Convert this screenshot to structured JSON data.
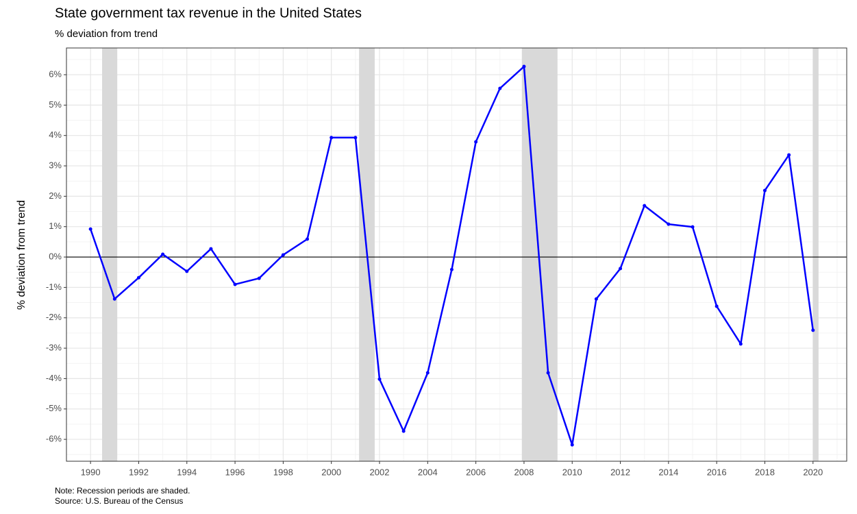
{
  "chart_data": {
    "type": "line",
    "title": "State government tax revenue in the United States",
    "subtitle": "% deviation from trend",
    "y_label": "% deviation from trend",
    "notes": [
      "Note: Recession periods are shaded.",
      "Source: U.S. Bureau of the Census"
    ],
    "x": [
      1990,
      1991,
      1992,
      1993,
      1994,
      1995,
      1996,
      1997,
      1998,
      1999,
      2000,
      2001,
      2002,
      2003,
      2004,
      2005,
      2006,
      2007,
      2008,
      2009,
      2010,
      2011,
      2012,
      2013,
      2014,
      2015,
      2016,
      2017,
      2018,
      2019,
      2020
    ],
    "series": [
      {
        "name": "% deviation from trend",
        "color": "#0000ff",
        "values": [
          0.92,
          -1.38,
          -0.68,
          0.09,
          -0.47,
          0.27,
          -0.9,
          -0.7,
          0.07,
          0.59,
          3.93,
          3.93,
          -4.02,
          -5.73,
          -3.81,
          -0.41,
          3.79,
          5.55,
          6.27,
          -3.81,
          -6.18,
          -1.38,
          -0.38,
          1.69,
          1.08,
          0.99,
          -1.62,
          -2.86,
          2.19,
          3.36,
          -2.41
        ]
      }
    ],
    "recessions": [
      [
        1990.48,
        1991.11
      ],
      [
        2001.15,
        2001.8
      ],
      [
        2007.91,
        2009.39
      ],
      [
        2020.0,
        2020.23
      ]
    ],
    "recession_color": "#d9d9d9",
    "hline": 0,
    "xlim": [
      1989,
      2021.4
    ],
    "ylim": [
      -6.72,
      6.88
    ],
    "xticks": [
      1990,
      1992,
      1994,
      1996,
      1998,
      2000,
      2002,
      2004,
      2006,
      2008,
      2010,
      2012,
      2014,
      2016,
      2018,
      2020
    ],
    "xminorticks": [
      1989,
      1991,
      1993,
      1995,
      1997,
      1999,
      2001,
      2003,
      2005,
      2007,
      2009,
      2011,
      2013,
      2015,
      2017,
      2019,
      2021
    ],
    "yticks": [
      {
        "value": -6,
        "label": "-6%"
      },
      {
        "value": -5,
        "label": "-5%"
      },
      {
        "value": -4,
        "label": "-4%"
      },
      {
        "value": -3,
        "label": "-3%"
      },
      {
        "value": -2,
        "label": "-2%"
      },
      {
        "value": -1,
        "label": "-1%"
      },
      {
        "value": 0,
        "label": "0%"
      },
      {
        "value": 1,
        "label": "1%"
      },
      {
        "value": 2,
        "label": "2%"
      },
      {
        "value": 3,
        "label": "3%"
      },
      {
        "value": 4,
        "label": "4%"
      },
      {
        "value": 5,
        "label": "5%"
      },
      {
        "value": 6,
        "label": "6%"
      }
    ],
    "yminorticks": [
      -6.5,
      -5.5,
      -4.5,
      -3.5,
      -2.5,
      -1.5,
      -0.5,
      0.5,
      1.5,
      2.5,
      3.5,
      4.5,
      5.5,
      6.5
    ],
    "grid": true
  }
}
